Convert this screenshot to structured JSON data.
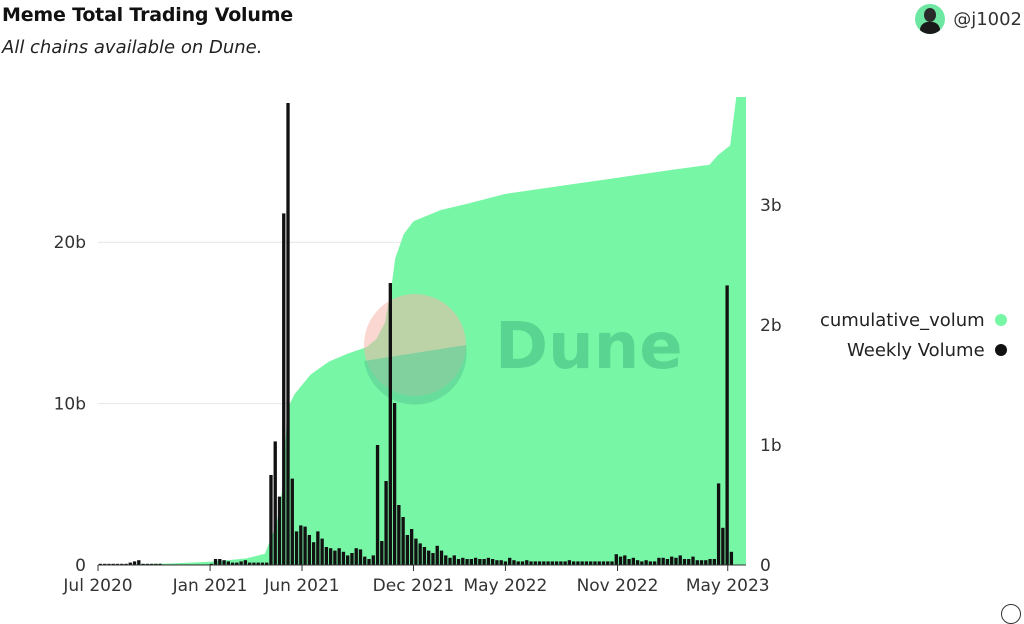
{
  "header": {
    "title": "Meme Total Trading Volume",
    "subtitle": "All chains available on Dune.",
    "author": "@j1002",
    "watermark": "Dune"
  },
  "colors": {
    "cumulative": "#77f7a6",
    "weekly": "#111111",
    "grid": "#e6e6e6",
    "watermark_text": "#4fc88a",
    "watermark_circle_a": "#f6b7a9",
    "watermark_circle_b": "#5fcf96"
  },
  "icons": {
    "avatar": "avatar-icon",
    "info": "info-icon"
  },
  "chart_data": {
    "type": "bar",
    "legend": {
      "position": "right",
      "entries": [
        "cumulative_volum",
        "Weekly Volume"
      ]
    },
    "x_ticks": [
      "Jul 2020",
      "Jan 2021",
      "Jun 2021",
      "Dec 2021",
      "May 2022",
      "Nov 2022",
      "May 2023"
    ],
    "y_left": {
      "ticks": [
        "0",
        "10b",
        "20b"
      ],
      "min": 0,
      "max": 29000000000.0,
      "grid": true
    },
    "y_right": {
      "ticks": [
        "0",
        "1b",
        "2b",
        "3b"
      ],
      "min": 0,
      "max": 3900000000.0
    },
    "x_range": [
      "2020-07-01",
      "2023-05-31"
    ],
    "series": [
      {
        "name": "cumulative_volum",
        "type": "area",
        "axis": "left",
        "points": [
          [
            "2020-07-01",
            0
          ],
          [
            "2020-09-01",
            50000000.0
          ],
          [
            "2020-11-01",
            100000000.0
          ],
          [
            "2021-01-01",
            200000000.0
          ],
          [
            "2021-03-01",
            400000000.0
          ],
          [
            "2021-04-01",
            700000000.0
          ],
          [
            "2021-04-20",
            2500000000.0
          ],
          [
            "2021-05-01",
            5000000000.0
          ],
          [
            "2021-05-08",
            9700000000.0
          ],
          [
            "2021-05-20",
            10600000000.0
          ],
          [
            "2021-06-15",
            11800000000.0
          ],
          [
            "2021-07-15",
            12600000000.0
          ],
          [
            "2021-08-15",
            13100000000.0
          ],
          [
            "2021-09-15",
            13500000000.0
          ],
          [
            "2021-10-01",
            14000000000.0
          ],
          [
            "2021-10-15",
            15000000000.0
          ],
          [
            "2021-10-25",
            17000000000.0
          ],
          [
            "2021-11-01",
            19000000000.0
          ],
          [
            "2021-11-15",
            20500000000.0
          ],
          [
            "2021-12-01",
            21300000000.0
          ],
          [
            "2022-01-15",
            22000000000.0
          ],
          [
            "2022-03-01",
            22400000000.0
          ],
          [
            "2022-05-01",
            23000000000.0
          ],
          [
            "2022-08-01",
            23500000000.0
          ],
          [
            "2022-11-01",
            24000000000.0
          ],
          [
            "2023-02-01",
            24500000000.0
          ],
          [
            "2023-04-01",
            24800000000.0
          ],
          [
            "2023-04-15",
            25400000000.0
          ],
          [
            "2023-05-05",
            26000000000.0
          ],
          [
            "2023-05-15",
            29000000000.0
          ],
          [
            "2023-05-31",
            29000000000.0
          ]
        ]
      },
      {
        "name": "Weekly Volume",
        "type": "bar",
        "axis": "right",
        "points": [
          [
            "2020-07-05",
            10000000.0
          ],
          [
            "2020-07-12",
            10000000.0
          ],
          [
            "2020-07-19",
            10000000.0
          ],
          [
            "2020-07-26",
            10000000.0
          ],
          [
            "2020-08-02",
            10000000.0
          ],
          [
            "2020-08-09",
            10000000.0
          ],
          [
            "2020-08-16",
            10000000.0
          ],
          [
            "2020-08-23",
            20000000.0
          ],
          [
            "2020-08-30",
            30000000.0
          ],
          [
            "2020-09-06",
            40000000.0
          ],
          [
            "2020-09-13",
            10000000.0
          ],
          [
            "2020-09-20",
            10000000.0
          ],
          [
            "2020-09-27",
            10000000.0
          ],
          [
            "2020-10-04",
            10000000.0
          ],
          [
            "2020-10-11",
            10000000.0
          ],
          [
            "2020-10-18",
            5000000.0
          ],
          [
            "2020-10-25",
            5000000.0
          ],
          [
            "2020-11-01",
            5000000.0
          ],
          [
            "2020-11-08",
            5000000.0
          ],
          [
            "2020-11-15",
            5000000.0
          ],
          [
            "2020-11-22",
            5000000.0
          ],
          [
            "2020-11-29",
            5000000.0
          ],
          [
            "2020-12-06",
            5000000.0
          ],
          [
            "2020-12-13",
            5000000.0
          ],
          [
            "2020-12-20",
            5000000.0
          ],
          [
            "2020-12-27",
            5000000.0
          ],
          [
            "2021-01-03",
            10000000.0
          ],
          [
            "2021-01-10",
            50000000.0
          ],
          [
            "2021-01-17",
            50000000.0
          ],
          [
            "2021-01-24",
            40000000.0
          ],
          [
            "2021-01-31",
            30000000.0
          ],
          [
            "2021-02-07",
            20000000.0
          ],
          [
            "2021-02-14",
            20000000.0
          ],
          [
            "2021-02-21",
            30000000.0
          ],
          [
            "2021-02-28",
            40000000.0
          ],
          [
            "2021-03-07",
            20000000.0
          ],
          [
            "2021-03-14",
            20000000.0
          ],
          [
            "2021-03-21",
            20000000.0
          ],
          [
            "2021-03-28",
            20000000.0
          ],
          [
            "2021-04-04",
            20000000.0
          ],
          [
            "2021-04-11",
            750000000.0
          ],
          [
            "2021-04-18",
            1030000000.0
          ],
          [
            "2021-04-25",
            570000000.0
          ],
          [
            "2021-05-02",
            2930000000.0
          ],
          [
            "2021-05-09",
            3850000000.0
          ],
          [
            "2021-05-16",
            720000000.0
          ],
          [
            "2021-05-23",
            280000000.0
          ],
          [
            "2021-05-30",
            330000000.0
          ],
          [
            "2021-06-06",
            320000000.0
          ],
          [
            "2021-06-13",
            250000000.0
          ],
          [
            "2021-06-20",
            190000000.0
          ],
          [
            "2021-06-27",
            280000000.0
          ],
          [
            "2021-07-04",
            220000000.0
          ],
          [
            "2021-07-11",
            150000000.0
          ],
          [
            "2021-07-18",
            140000000.0
          ],
          [
            "2021-07-25",
            120000000.0
          ],
          [
            "2021-08-01",
            140000000.0
          ],
          [
            "2021-08-08",
            110000000.0
          ],
          [
            "2021-08-15",
            80000000.0
          ],
          [
            "2021-08-22",
            100000000.0
          ],
          [
            "2021-08-29",
            140000000.0
          ],
          [
            "2021-09-05",
            130000000.0
          ],
          [
            "2021-09-12",
            70000000.0
          ],
          [
            "2021-09-19",
            50000000.0
          ],
          [
            "2021-09-26",
            80000000.0
          ],
          [
            "2021-10-03",
            1000000000.0
          ],
          [
            "2021-10-10",
            200000000.0
          ],
          [
            "2021-10-17",
            700000000.0
          ],
          [
            "2021-10-24",
            2350000000.0
          ],
          [
            "2021-10-31",
            1350000000.0
          ],
          [
            "2021-11-07",
            500000000.0
          ],
          [
            "2021-11-14",
            400000000.0
          ],
          [
            "2021-11-21",
            250000000.0
          ],
          [
            "2021-11-28",
            300000000.0
          ],
          [
            "2021-12-05",
            220000000.0
          ],
          [
            "2021-12-12",
            180000000.0
          ],
          [
            "2021-12-19",
            150000000.0
          ],
          [
            "2021-12-26",
            120000000.0
          ],
          [
            "2022-01-02",
            100000000.0
          ],
          [
            "2022-01-09",
            160000000.0
          ],
          [
            "2022-01-16",
            120000000.0
          ],
          [
            "2022-01-23",
            80000000.0
          ],
          [
            "2022-01-30",
            60000000.0
          ],
          [
            "2022-02-06",
            80000000.0
          ],
          [
            "2022-02-13",
            50000000.0
          ],
          [
            "2022-02-20",
            60000000.0
          ],
          [
            "2022-02-27",
            50000000.0
          ],
          [
            "2022-03-06",
            50000000.0
          ],
          [
            "2022-03-13",
            60000000.0
          ],
          [
            "2022-03-20",
            50000000.0
          ],
          [
            "2022-03-27",
            50000000.0
          ],
          [
            "2022-04-03",
            60000000.0
          ],
          [
            "2022-04-10",
            50000000.0
          ],
          [
            "2022-04-17",
            40000000.0
          ],
          [
            "2022-04-24",
            40000000.0
          ],
          [
            "2022-05-01",
            30000000.0
          ],
          [
            "2022-05-08",
            60000000.0
          ],
          [
            "2022-05-15",
            40000000.0
          ],
          [
            "2022-05-22",
            30000000.0
          ],
          [
            "2022-05-29",
            30000000.0
          ],
          [
            "2022-06-05",
            40000000.0
          ],
          [
            "2022-06-12",
            30000000.0
          ],
          [
            "2022-06-19",
            30000000.0
          ],
          [
            "2022-06-26",
            30000000.0
          ],
          [
            "2022-07-03",
            30000000.0
          ],
          [
            "2022-07-10",
            30000000.0
          ],
          [
            "2022-07-17",
            30000000.0
          ],
          [
            "2022-07-24",
            30000000.0
          ],
          [
            "2022-07-31",
            30000000.0
          ],
          [
            "2022-08-07",
            30000000.0
          ],
          [
            "2022-08-14",
            40000000.0
          ],
          [
            "2022-08-21",
            30000000.0
          ],
          [
            "2022-08-28",
            30000000.0
          ],
          [
            "2022-09-04",
            30000000.0
          ],
          [
            "2022-09-11",
            30000000.0
          ],
          [
            "2022-09-18",
            30000000.0
          ],
          [
            "2022-09-25",
            30000000.0
          ],
          [
            "2022-10-02",
            30000000.0
          ],
          [
            "2022-10-09",
            30000000.0
          ],
          [
            "2022-10-16",
            30000000.0
          ],
          [
            "2022-10-23",
            30000000.0
          ],
          [
            "2022-10-30",
            90000000.0
          ],
          [
            "2022-11-06",
            70000000.0
          ],
          [
            "2022-11-13",
            80000000.0
          ],
          [
            "2022-11-20",
            50000000.0
          ],
          [
            "2022-11-27",
            60000000.0
          ],
          [
            "2022-12-04",
            40000000.0
          ],
          [
            "2022-12-11",
            30000000.0
          ],
          [
            "2022-12-18",
            40000000.0
          ],
          [
            "2022-12-25",
            30000000.0
          ],
          [
            "2023-01-01",
            30000000.0
          ],
          [
            "2023-01-08",
            60000000.0
          ],
          [
            "2023-01-15",
            60000000.0
          ],
          [
            "2023-01-22",
            50000000.0
          ],
          [
            "2023-01-29",
            70000000.0
          ],
          [
            "2023-02-05",
            60000000.0
          ],
          [
            "2023-02-12",
            80000000.0
          ],
          [
            "2023-02-19",
            50000000.0
          ],
          [
            "2023-02-26",
            50000000.0
          ],
          [
            "2023-03-05",
            70000000.0
          ],
          [
            "2023-03-12",
            40000000.0
          ],
          [
            "2023-03-19",
            40000000.0
          ],
          [
            "2023-03-26",
            40000000.0
          ],
          [
            "2023-04-02",
            50000000.0
          ],
          [
            "2023-04-09",
            50000000.0
          ],
          [
            "2023-04-16",
            680000000.0
          ],
          [
            "2023-04-23",
            310000000.0
          ],
          [
            "2023-04-30",
            2330000000.0
          ],
          [
            "2023-05-07",
            110000000.0
          ]
        ]
      }
    ]
  }
}
